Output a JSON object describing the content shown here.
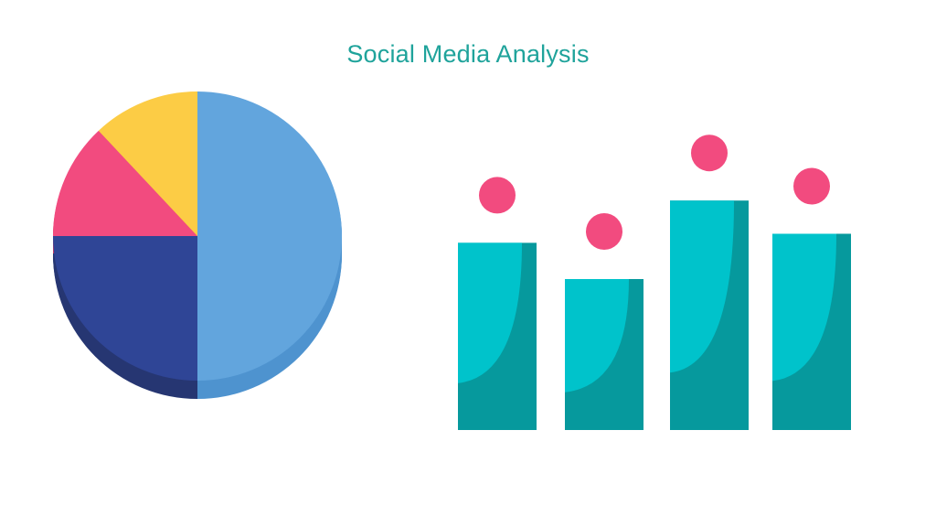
{
  "title": "Social Media Analysis",
  "colors": {
    "title": "#1fa39b",
    "bar_light": "#00c3cb",
    "bar_dark": "#06999d",
    "dot": "#f24b7f"
  },
  "chart_data": [
    {
      "type": "pie",
      "start": "12 o'clock",
      "direction": "clockwise",
      "slices": [
        {
          "value": 50,
          "color": "#62a5dd",
          "side_color": "#4e93cf"
        },
        {
          "value": 25,
          "color": "#2f4596",
          "side_color": "#263672"
        },
        {
          "value": 13,
          "color": "#f24b7f",
          "side_color": "#c83a66"
        },
        {
          "value": 12,
          "color": "#fccc45",
          "side_color": "#d7ab33"
        }
      ],
      "style": "3d"
    },
    {
      "type": "bar",
      "values": [
        62,
        50,
        76,
        65
      ],
      "ylim": [
        0,
        100
      ],
      "axes": false,
      "grid": false,
      "markers": "circle above each bar"
    }
  ]
}
